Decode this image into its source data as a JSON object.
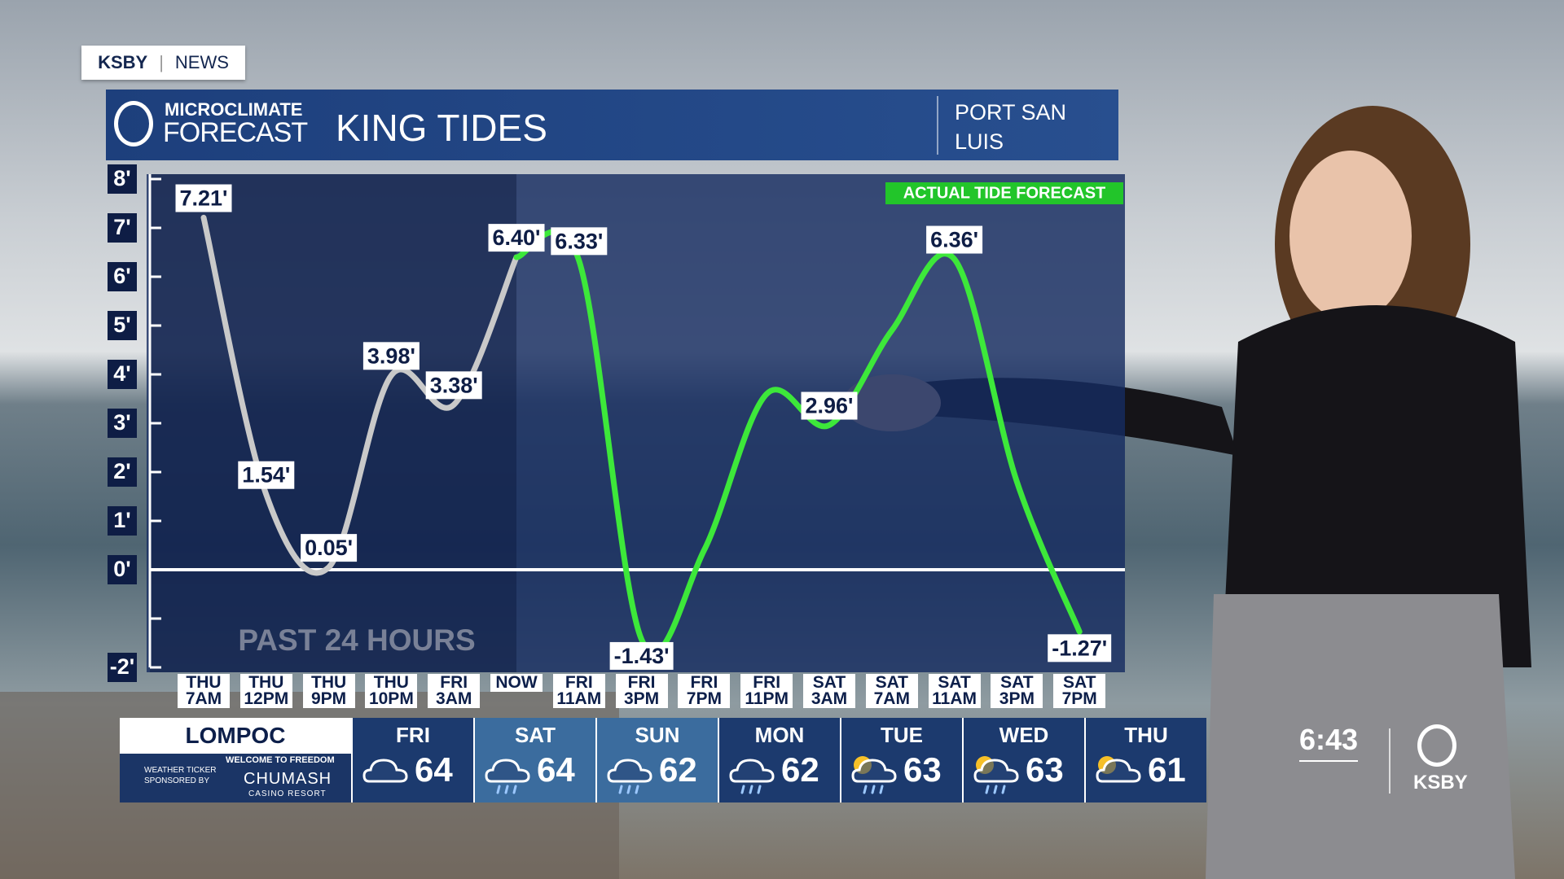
{
  "brand": {
    "station": "KSBY",
    "section": "NEWS"
  },
  "header": {
    "logo_top": "MICROCLIMATE",
    "logo_bottom": "FORECAST",
    "location": "PORT SAN LUIS"
  },
  "chart_data": {
    "type": "line",
    "title": "KING TIDES",
    "categories": [
      "THU 7AM",
      "THU 12PM",
      "THU 9PM",
      "THU 10PM",
      "FRI 3AM",
      "NOW",
      "FRI 11AM",
      "FRI 3PM",
      "FRI 7PM",
      "FRI 11PM",
      "SAT 3AM",
      "SAT 7AM",
      "SAT 11AM",
      "SAT 3PM",
      "SAT 7PM"
    ],
    "series": [
      {
        "name": "PAST 24 HOURS",
        "color": "#c9c9c9",
        "values": [
          7.21,
          1.54,
          0.05,
          3.98,
          3.38,
          6.4,
          null,
          null,
          null,
          null,
          null,
          null,
          null,
          null,
          null
        ],
        "value_labels": [
          "7.21'",
          "1.54'",
          "0.05'",
          "3.98'",
          "3.38'",
          "6.40'",
          null,
          null,
          null,
          null,
          null,
          null,
          null,
          null,
          null
        ]
      },
      {
        "name": "ACTUAL TIDE FORECAST",
        "color": "#3de83a",
        "values": [
          null,
          null,
          null,
          null,
          null,
          6.4,
          6.33,
          -1.43,
          0.4,
          3.6,
          2.96,
          4.9,
          6.36,
          1.8,
          -1.27
        ],
        "value_labels": [
          null,
          null,
          null,
          null,
          null,
          null,
          "6.33'",
          "-1.43'",
          null,
          null,
          "2.96'",
          null,
          "6.36'",
          null,
          "-1.27'"
        ]
      }
    ],
    "ylim": [
      -2,
      8
    ],
    "yticks": [
      {
        "value": -2,
        "label": "-2'"
      },
      {
        "value": -1,
        "label": null
      },
      {
        "value": 0,
        "label": "0'"
      },
      {
        "value": 1,
        "label": "1'"
      },
      {
        "value": 2,
        "label": "2'"
      },
      {
        "value": 3,
        "label": "3'"
      },
      {
        "value": 4,
        "label": "4'"
      },
      {
        "value": 5,
        "label": "5'"
      },
      {
        "value": 6,
        "label": "6'"
      },
      {
        "value": 7,
        "label": "7'"
      },
      {
        "value": 8,
        "label": "8'"
      }
    ]
  },
  "ticker": {
    "city": "LOMPOC",
    "sponsor_note": "WEATHER TICKER SPONSORED BY",
    "sponsor_tagline": "WELCOME TO FREEDOM",
    "sponsor_name": "CHUMASH",
    "sponsor_sub": "CASINO RESORT",
    "days": [
      {
        "day": "FRI",
        "temp": 64
      },
      {
        "day": "SAT",
        "temp": 64
      },
      {
        "day": "SUN",
        "temp": 62
      },
      {
        "day": "MON",
        "temp": 62
      },
      {
        "day": "TUE",
        "temp": 63
      },
      {
        "day": "WED",
        "temp": 63
      },
      {
        "day": "THU",
        "temp": 61
      }
    ]
  },
  "clock": "6:43",
  "logo": "KSBY"
}
